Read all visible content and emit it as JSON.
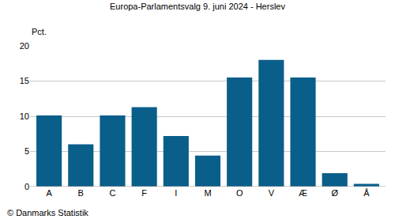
{
  "chart_data": {
    "type": "bar",
    "title": "Europa-Parlamentsvalg 9. juni 2024 - Herslev",
    "ylabel": "Pct.",
    "annotations": [
      "© Danmarks Statistik"
    ],
    "categories": [
      "A",
      "B",
      "C",
      "F",
      "I",
      "M",
      "O",
      "V",
      "Æ",
      "Ø",
      "Å"
    ],
    "values": [
      10.1,
      6.0,
      10.1,
      11.3,
      7.2,
      4.4,
      15.5,
      18.0,
      15.5,
      1.9,
      0.4
    ],
    "color": "#0a5e8a",
    "ylim": [
      0,
      20
    ],
    "yticks": [
      0,
      5,
      10,
      15,
      20
    ],
    "grid": true
  }
}
